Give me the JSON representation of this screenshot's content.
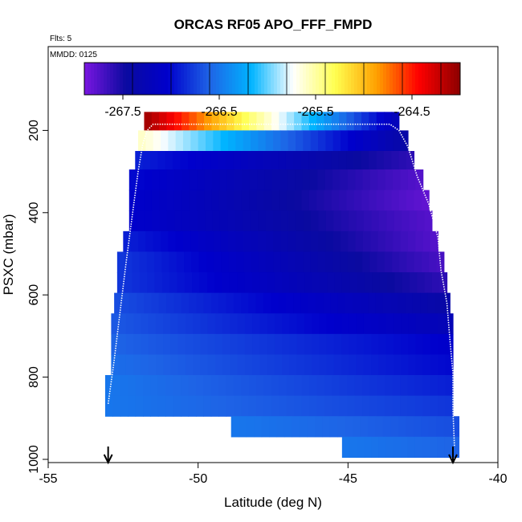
{
  "chart_data": {
    "type": "heatmap",
    "title": "ORCAS RF05 APO_FFF_FMPD",
    "flights_note": "Flts: 5",
    "date_note": "MMDD: 0125",
    "xlabel": "Latitude (deg N)",
    "ylabel": "PSXC (mbar)",
    "xlim": [
      -55,
      -40
    ],
    "ylim": [
      1000,
      0
    ],
    "x_ticks": [
      -55,
      -50,
      -45,
      -40
    ],
    "x_tick_labels": [
      "-55",
      "-50",
      "-45",
      "-40"
    ],
    "y_ticks": [
      200,
      400,
      600,
      800,
      1000
    ],
    "y_tick_labels": [
      "200",
      "400",
      "600",
      "800",
      "1000"
    ],
    "colorbar": {
      "range": [
        -267.9,
        -264.0
      ],
      "ticks": [
        -267.5,
        -266.5,
        -265.5,
        -264.5
      ],
      "tick_labels": [
        "-267.5",
        "-266.5",
        "-265.5",
        "-264.5"
      ],
      "divider_values": [
        -267.4,
        -267.0,
        -266.6,
        -266.2,
        -265.8,
        -265.4,
        -265.0,
        -264.6,
        -264.2
      ],
      "colors": [
        "#7a16e0",
        "#0a0aa0",
        "#0000cc",
        "#1e64e6",
        "#00b4ff",
        "#ffffff",
        "#ffff50",
        "#ffa000",
        "#ff0000",
        "#8c0000"
      ]
    },
    "bands": [
      {
        "p": 180,
        "lat_min": -51.8,
        "lat_max": -43.3,
        "v0": -264.1,
        "v1": -267.2
      },
      {
        "p": 225,
        "lat_min": -52.0,
        "lat_max": -43.0,
        "v0": -265.6,
        "v1": -267.4
      },
      {
        "p": 275,
        "lat_min": -52.1,
        "lat_max": -42.8,
        "v0": -266.9,
        "v1": -267.6
      },
      {
        "p": 320,
        "lat_min": -52.3,
        "lat_max": -42.5,
        "v0": -267.0,
        "v1": -267.75
      },
      {
        "p": 370,
        "lat_min": -52.3,
        "lat_max": -42.3,
        "v0": -267.05,
        "v1": -267.8
      },
      {
        "p": 420,
        "lat_min": -52.3,
        "lat_max": -42.2,
        "v0": -267.05,
        "v1": -267.75
      },
      {
        "p": 470,
        "lat_min": -52.5,
        "lat_max": -42.0,
        "v0": -266.9,
        "v1": -267.75
      },
      {
        "p": 520,
        "lat_min": -52.7,
        "lat_max": -41.8,
        "v0": -266.8,
        "v1": -267.7
      },
      {
        "p": 570,
        "lat_min": -52.7,
        "lat_max": -41.7,
        "v0": -266.8,
        "v1": -267.6
      },
      {
        "p": 620,
        "lat_min": -52.8,
        "lat_max": -41.6,
        "v0": -266.7,
        "v1": -267.4
      },
      {
        "p": 670,
        "lat_min": -52.9,
        "lat_max": -41.5,
        "v0": -266.65,
        "v1": -267.25
      },
      {
        "p": 720,
        "lat_min": -52.9,
        "lat_max": -41.5,
        "v0": -266.6,
        "v1": -267.05
      },
      {
        "p": 770,
        "lat_min": -52.9,
        "lat_max": -41.5,
        "v0": -266.55,
        "v1": -267.0
      },
      {
        "p": 820,
        "lat_min": -53.1,
        "lat_max": -41.5,
        "v0": -266.5,
        "v1": -266.9
      },
      {
        "p": 870,
        "lat_min": -53.1,
        "lat_max": -41.5,
        "v0": -266.5,
        "v1": -266.8
      },
      {
        "p": 920,
        "lat_min": -48.9,
        "lat_max": -41.3,
        "v0": -266.5,
        "v1": -266.7
      },
      {
        "p": 970,
        "lat_min": -45.2,
        "lat_max": -41.3,
        "v0": -266.5,
        "v1": -266.6
      }
    ],
    "trajectory": [
      [
        -53.0,
        865
      ],
      [
        -52.8,
        760
      ],
      [
        -52.6,
        640
      ],
      [
        -52.4,
        520
      ],
      [
        -52.2,
        410
      ],
      [
        -52.0,
        300
      ],
      [
        -51.85,
        235
      ],
      [
        -51.7,
        200
      ],
      [
        -51.5,
        185
      ],
      [
        -50.0,
        185
      ],
      [
        -47.0,
        185
      ],
      [
        -45.0,
        185
      ],
      [
        -43.6,
        185
      ],
      [
        -43.3,
        200
      ],
      [
        -43.0,
        240
      ],
      [
        -42.7,
        310
      ],
      [
        -42.3,
        380
      ],
      [
        -42.0,
        460
      ],
      [
        -41.9,
        540
      ],
      [
        -41.7,
        620
      ],
      [
        -41.6,
        710
      ],
      [
        -41.5,
        790
      ],
      [
        -41.5,
        880
      ],
      [
        -41.45,
        970
      ]
    ],
    "arrows": [
      -53.0,
      -41.5
    ]
  }
}
